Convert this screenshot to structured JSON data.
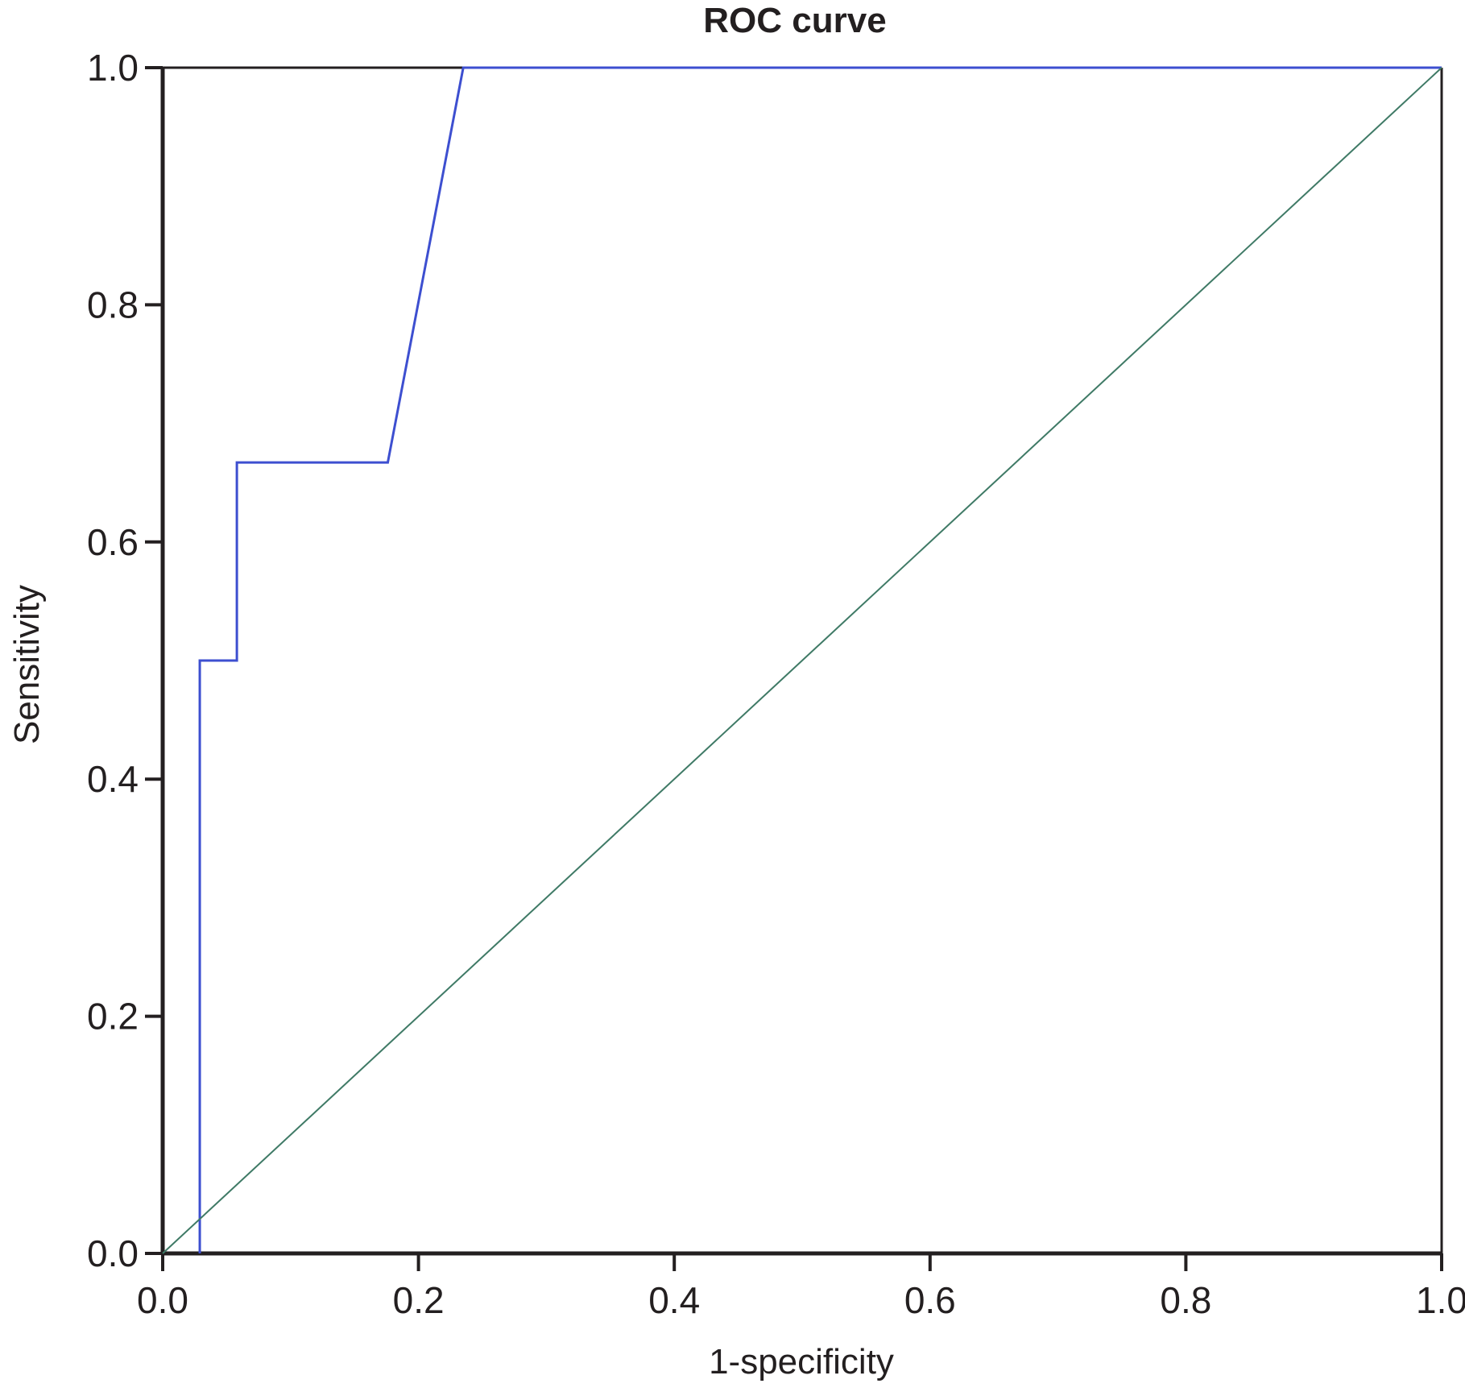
{
  "chart_data": {
    "type": "line",
    "title": "ROC curve",
    "xlabel": "1-specificity",
    "ylabel": "Sensitivity",
    "xlim": [
      0,
      1
    ],
    "ylim": [
      0,
      1
    ],
    "xticks": [
      "0.0",
      "0.2",
      "0.4",
      "0.6",
      "0.8",
      "1.0"
    ],
    "yticks": [
      "0.0",
      "0.2",
      "0.4",
      "0.6",
      "0.8",
      "1.0"
    ],
    "grid": false,
    "legend": "none",
    "series": [
      {
        "color": "#3d4fd0",
        "x": [
          0.029,
          0.029,
          0.058,
          0.058,
          0.176,
          0.235,
          1.0
        ],
        "y": [
          0.0,
          0.5,
          0.5,
          0.667,
          0.667,
          1.0,
          1.0
        ]
      },
      {
        "color": "#3f7a66",
        "x": [
          0.0,
          1.0
        ],
        "y": [
          0.0,
          1.0
        ]
      }
    ]
  }
}
